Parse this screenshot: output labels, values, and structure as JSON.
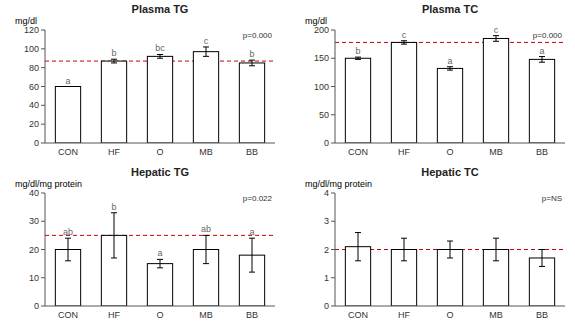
{
  "chart_data": [
    {
      "type": "bar",
      "title": "Plasma TG",
      "ylabel": "mg/dl",
      "categories": [
        "CON",
        "HF",
        "O",
        "MB",
        "BB"
      ],
      "values": [
        60,
        87,
        92,
        97,
        85
      ],
      "errors": [
        0,
        2,
        2,
        5,
        3
      ],
      "value_annotations": [
        "a",
        "b",
        "bc",
        "c",
        "b"
      ],
      "reference_line": 87,
      "color": "#ffffff",
      "ylim": [
        0,
        120
      ],
      "yticks": [
        0,
        20,
        40,
        60,
        80,
        100,
        120
      ],
      "annotations": [
        "p=0.000"
      ],
      "grid": false
    },
    {
      "type": "bar",
      "title": "Plasma TC",
      "ylabel": "mg/dl",
      "categories": [
        "CON",
        "HF",
        "O",
        "MB",
        "BB"
      ],
      "values": [
        150,
        178,
        132,
        185,
        148
      ],
      "errors": [
        2,
        3,
        3,
        5,
        5
      ],
      "value_annotations": [
        "b",
        "c",
        "a",
        "c",
        "a"
      ],
      "reference_line": 178,
      "color": "#ffffff",
      "ylim": [
        0,
        200
      ],
      "yticks": [
        0,
        50,
        100,
        150,
        200
      ],
      "annotations": [
        "p=0.000"
      ],
      "grid": false
    },
    {
      "type": "bar",
      "title": "Hepatic TG",
      "ylabel": "mg/dl/mg protein",
      "categories": [
        "CON",
        "HF",
        "O",
        "MB",
        "BB"
      ],
      "values": [
        20,
        25,
        15,
        20,
        18
      ],
      "errors": [
        4,
        8,
        1.5,
        5,
        6
      ],
      "value_annotations": [
        "ab",
        "b",
        "a",
        "ab",
        "a"
      ],
      "reference_line": 25,
      "color": "#ffffff",
      "ylim": [
        0,
        40
      ],
      "yticks": [
        0,
        10,
        20,
        30,
        40
      ],
      "annotations": [
        "p=0.022"
      ],
      "grid": false
    },
    {
      "type": "bar",
      "title": "Hepatic TC",
      "ylabel": "mg/dl/mg protein",
      "categories": [
        "CON",
        "HF",
        "O",
        "MB",
        "BB"
      ],
      "values": [
        2.1,
        2.0,
        2.0,
        2.0,
        1.7
      ],
      "errors": [
        0.5,
        0.4,
        0.3,
        0.4,
        0.3
      ],
      "reference_line": 2.0,
      "color": "#ffffff",
      "ylim": [
        0,
        4
      ],
      "yticks": [
        0,
        1,
        2,
        3,
        4
      ],
      "annotations": [
        "p=NS"
      ],
      "grid": false
    }
  ]
}
